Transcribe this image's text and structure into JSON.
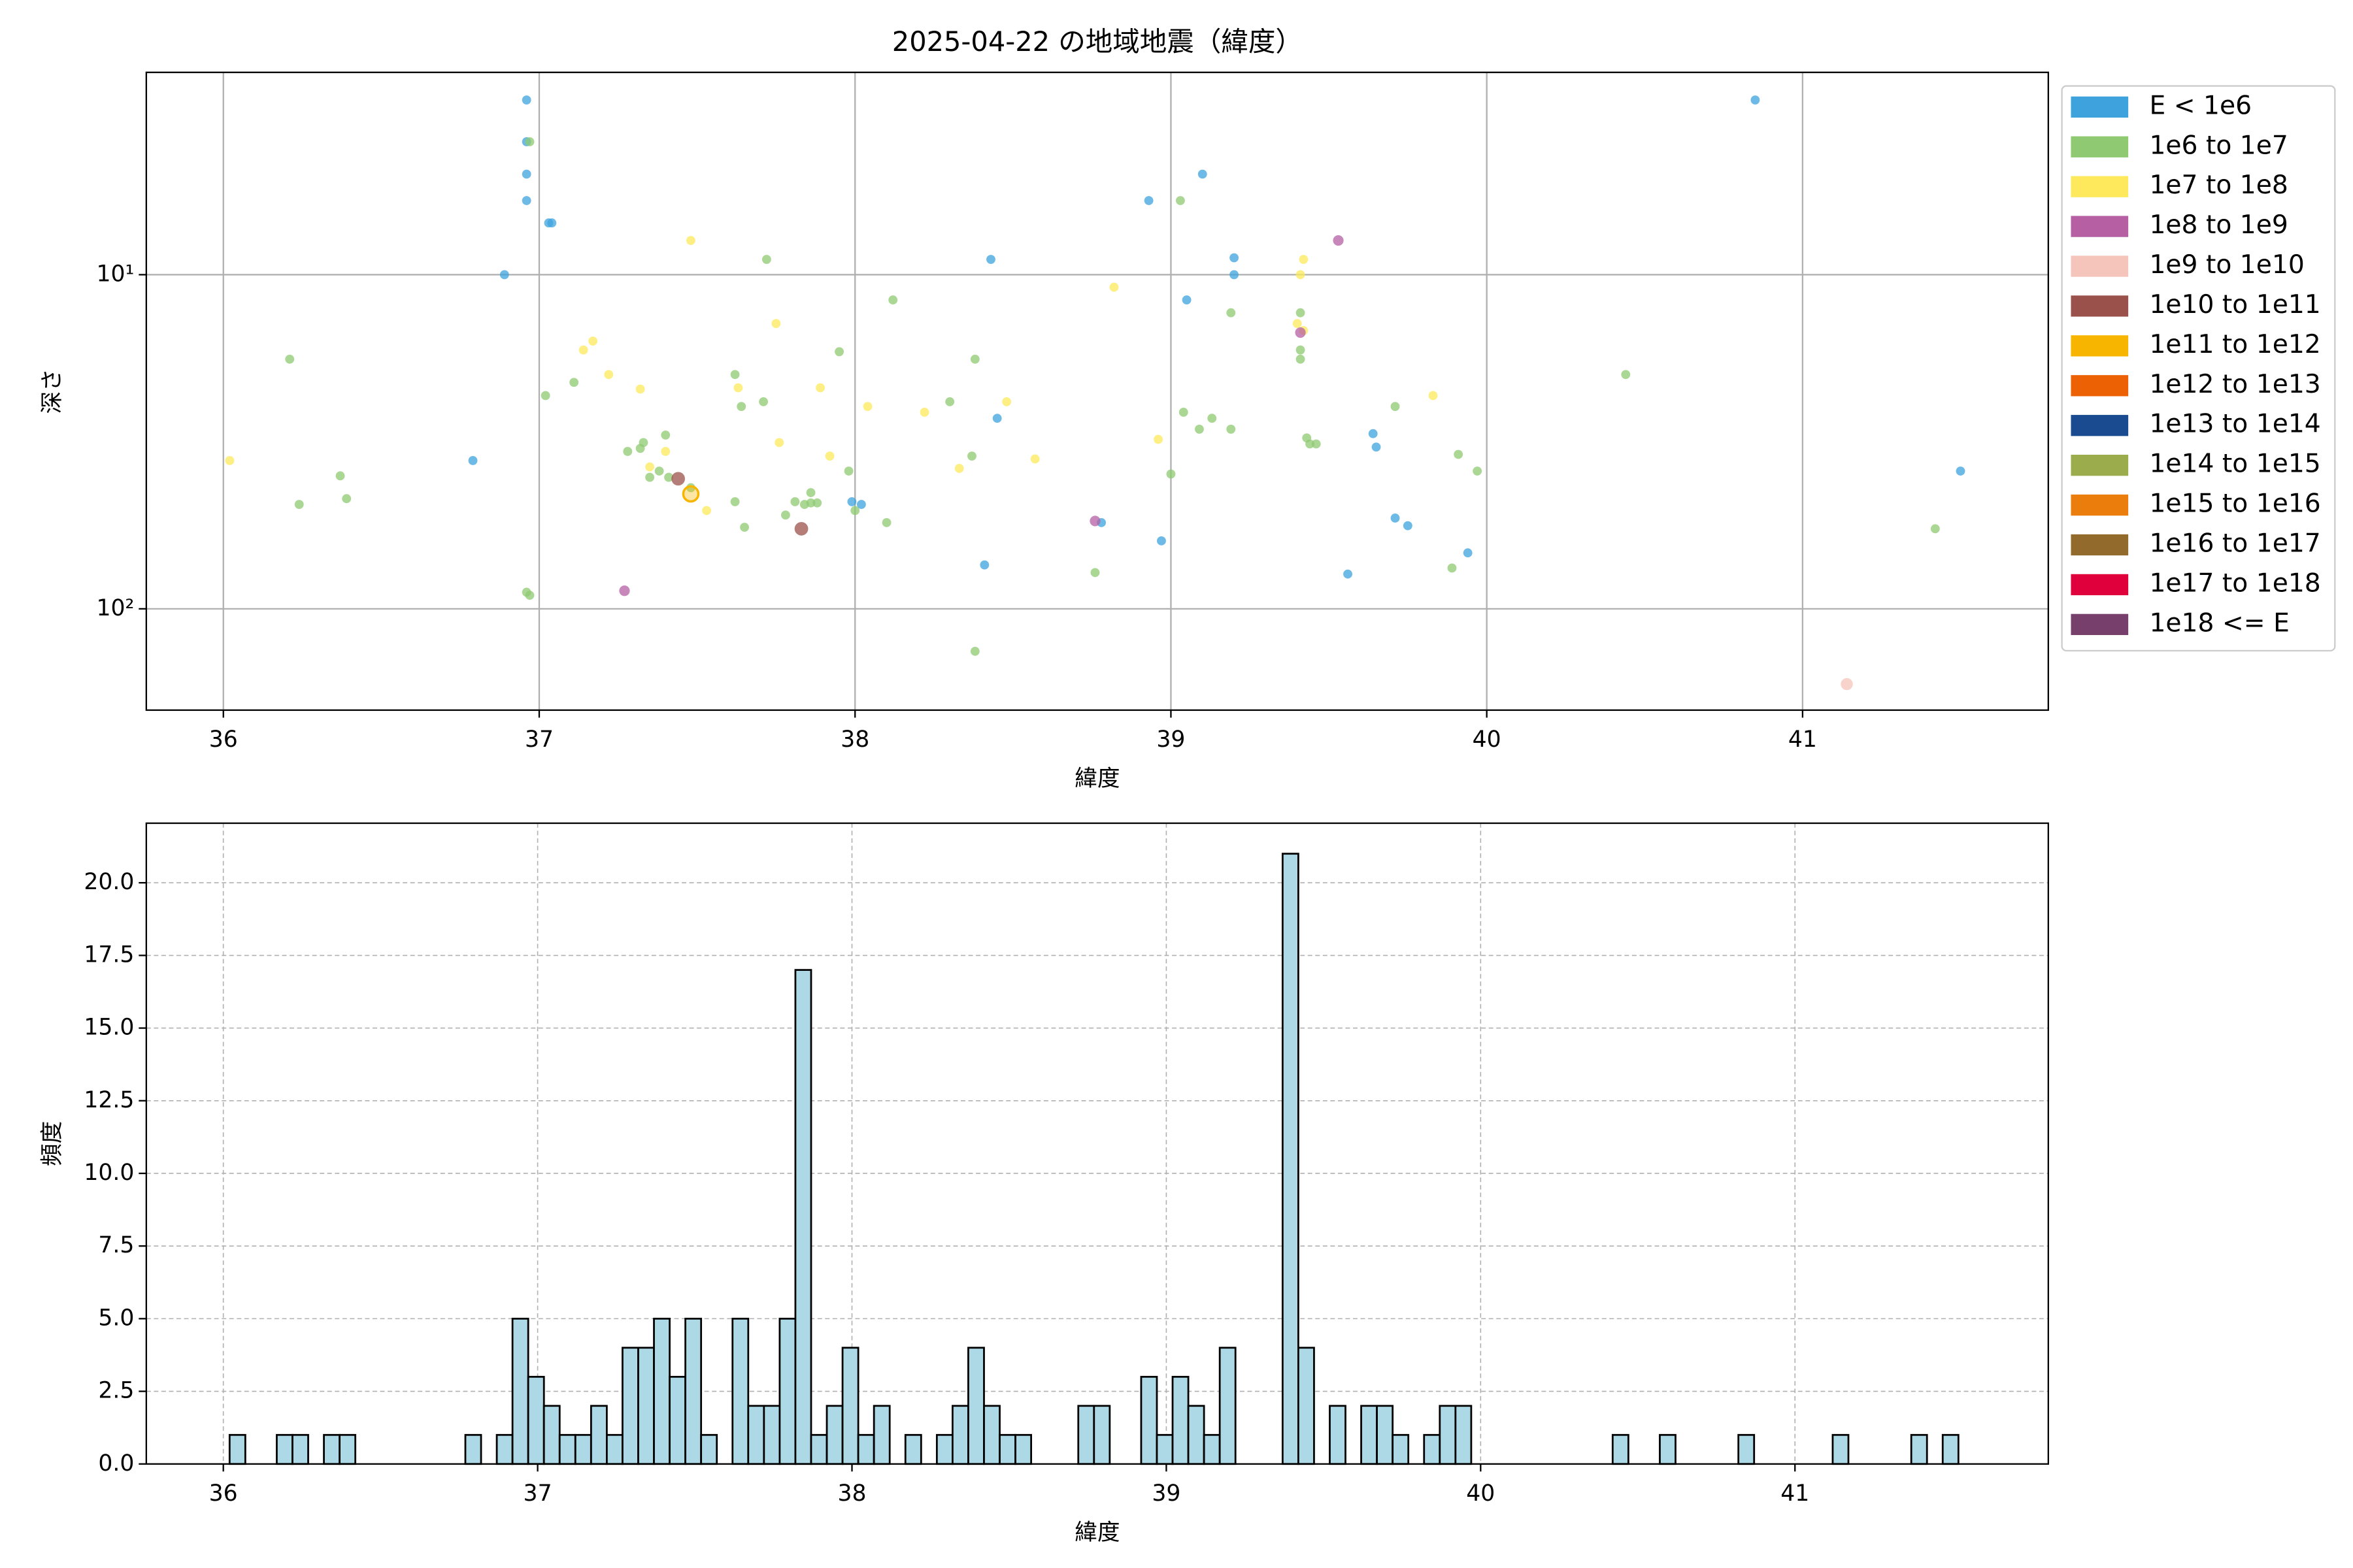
{
  "chart_data": [
    {
      "type": "scatter",
      "title": "2025-04-22 の地域地震（緯度）",
      "xlabel": "緯度",
      "ylabel": "深さ",
      "xlim": [
        35.756,
        41.778
      ],
      "ylim": [
        201,
        2.48
      ],
      "y_scale": "log",
      "xticks": [
        36,
        37,
        38,
        39,
        40,
        41
      ],
      "yticks": [
        {
          "value": 10,
          "label": "10¹"
        },
        {
          "value": 100,
          "label": "10²"
        }
      ],
      "grid": true,
      "legend": "outside right",
      "series": [
        {
          "name": "E < 1e6",
          "color": "#3ea3dd",
          "x": [
            36.96,
            36.96,
            36.96,
            36.96,
            37.03,
            37.04,
            36.89,
            36.79,
            38.43,
            38.45,
            38.93,
            39.1,
            39.05,
            39.2,
            39.2,
            37.99,
            38.02,
            38.78,
            38.41,
            38.97,
            39.56,
            39.64,
            39.65,
            39.71,
            39.75,
            39.94,
            40.85,
            41.5
          ],
          "values": [
            3.0,
            4.0,
            5.0,
            6.0,
            7.0,
            7.0,
            10,
            36,
            9.0,
            26.9,
            6.0,
            5.0,
            11.9,
            8.9,
            10,
            47.8,
            48.7,
            55.2,
            73.9,
            62.6,
            78.7,
            29.9,
            32.8,
            53.5,
            56.4,
            68,
            3.0,
            38.7
          ]
        },
        {
          "name": "1e6 to 1e7",
          "color": "#8fc971",
          "x": [
            36.97,
            36.21,
            36.24,
            36.37,
            36.39,
            37.02,
            37.11,
            36.96,
            36.97,
            37.28,
            37.32,
            37.33,
            37.35,
            37.4,
            37.38,
            37.41,
            37.48,
            37.62,
            37.62,
            37.64,
            37.65,
            37.72,
            37.71,
            37.78,
            37.81,
            37.84,
            37.86,
            37.86,
            37.88,
            37.95,
            37.98,
            38.0,
            38.1,
            38.12,
            38.3,
            38.37,
            38.38,
            38.38,
            38.76,
            39.0,
            39.03,
            39.04,
            39.09,
            39.13,
            39.19,
            39.19,
            39.41,
            39.41,
            39.41,
            39.43,
            39.44,
            39.46,
            39.71,
            39.89,
            39.91,
            39.97,
            40.44,
            41.42
          ],
          "values": [
            4.0,
            17.9,
            48.7,
            40,
            46.8,
            23,
            21,
            89.2,
            91.1,
            33.8,
            33.1,
            31.8,
            40.4,
            30.2,
            38.7,
            40.4,
            43.4,
            19.9,
            47.8,
            24.8,
            57,
            9.0,
            24,
            52.4,
            47.8,
            48.7,
            44.9,
            48.2,
            48.2,
            17.0,
            38.7,
            50.8,
            55.2,
            11.9,
            24,
            34.9,
            17.9,
            134,
            77.9,
            39.5,
            6.0,
            25.8,
            29,
            26.9,
            13.0,
            29,
            13.0,
            16.8,
            17.9,
            30.8,
            32.1,
            32.1,
            24.8,
            75.5,
            34.5,
            38.7,
            19.9,
            57.6
          ]
        },
        {
          "name": "1e7 to 1e8",
          "color": "#fde95b",
          "x": [
            36.02,
            37.14,
            37.17,
            37.22,
            37.32,
            37.4,
            37.35,
            37.48,
            37.53,
            37.63,
            37.75,
            37.76,
            37.89,
            37.92,
            38.04,
            38.22,
            38.33,
            38.48,
            38.57,
            38.82,
            38.96,
            39.41,
            39.42,
            39.4,
            39.42,
            39.83
          ],
          "values": [
            36,
            16.8,
            15.8,
            19.9,
            22,
            33.8,
            37.6,
            7.9,
            50.8,
            21.8,
            14.0,
            31.8,
            21.8,
            34.9,
            24.8,
            25.8,
            38,
            24,
            35.6,
            10.9,
            31.1,
            10,
            9.0,
            14.0,
            14.7,
            23
          ]
        },
        {
          "name": "1e8 to 1e9",
          "color": "#b65fa3",
          "x": [
            39.53,
            37.27,
            38.76,
            39.41
          ],
          "values": [
            7.9,
            88.3,
            54.6,
            14.9
          ]
        },
        {
          "name": "1e9 to 1e10",
          "color": "#f5c4bb",
          "x": [
            41.14
          ],
          "values": [
            168
          ]
        },
        {
          "name": "1e10 to 1e11",
          "color": "#9b514b",
          "x": [
            37.44,
            37.83
          ],
          "values": [
            40.8,
            57.6
          ]
        },
        {
          "name": "1e11 to 1e12",
          "color": "#f8b500",
          "x": [
            37.48
          ],
          "values": [
            45.3
          ]
        },
        {
          "name": "1e12 to 1e13",
          "color": "#ec6104",
          "x": [],
          "values": []
        },
        {
          "name": "1e13 to 1e14",
          "color": "#1a4a8f",
          "x": [],
          "values": []
        },
        {
          "name": "1e14 to 1e15",
          "color": "#9aac4c",
          "x": [],
          "values": []
        },
        {
          "name": "1e15 to 1e16",
          "color": "#ea7d0c",
          "x": [],
          "values": []
        },
        {
          "name": "1e16 to 1e17",
          "color": "#926a2b",
          "x": [],
          "values": []
        },
        {
          "name": "1e17 to 1e18",
          "color": "#e0003c",
          "x": [],
          "values": []
        },
        {
          "name": "1e18 <= E",
          "color": "#773f6c",
          "x": [],
          "values": []
        }
      ]
    },
    {
      "type": "histogram",
      "xlabel": "緯度",
      "ylabel": "頻度",
      "xlim": [
        35.755,
        41.806
      ],
      "ylim": [
        0,
        22.05
      ],
      "xticks": [
        36,
        37,
        38,
        39,
        40,
        41
      ],
      "yticks": [
        {
          "value": 0,
          "label": "0.0"
        },
        {
          "value": 2.5,
          "label": "2.5"
        },
        {
          "value": 5,
          "label": "5.0"
        },
        {
          "value": 7.5,
          "label": "7.5"
        },
        {
          "value": 10,
          "label": "10.0"
        },
        {
          "value": 12.5,
          "label": "12.5"
        },
        {
          "value": 15,
          "label": "15.0"
        },
        {
          "value": 17.5,
          "label": "17.5"
        },
        {
          "value": 20,
          "label": "20.0"
        }
      ],
      "grid": "dashed",
      "color": "#add8e6",
      "edgecolor": "#000000",
      "bins": [
        36.02,
        36.07,
        36.12,
        36.17,
        36.22,
        36.27,
        36.32,
        36.37,
        36.42,
        36.47,
        36.52,
        36.57,
        36.62,
        36.67,
        36.72,
        36.77,
        36.82,
        36.87,
        36.92,
        36.97,
        37.02,
        37.07,
        37.12,
        37.17,
        37.22,
        37.27,
        37.32,
        37.37,
        37.42,
        37.47,
        37.52,
        37.57,
        37.62,
        37.67,
        37.72,
        37.77,
        37.82,
        37.87,
        37.92,
        37.97,
        38.02,
        38.07,
        38.12,
        38.17,
        38.22,
        38.27,
        38.32,
        38.37,
        38.42,
        38.47,
        38.52,
        38.57,
        38.62,
        38.67,
        38.72,
        38.77,
        38.82,
        38.87,
        38.92,
        38.97,
        39.02,
        39.07,
        39.12,
        39.17,
        39.22,
        39.27,
        39.32,
        39.37,
        39.42,
        39.47,
        39.52,
        39.57,
        39.62,
        39.67,
        39.72,
        39.77,
        39.82,
        39.87,
        39.92,
        39.97,
        40.02,
        40.07,
        40.12,
        40.17,
        40.22,
        40.27,
        40.32,
        40.37,
        40.42,
        40.47,
        40.52,
        40.57,
        40.62,
        40.67,
        40.72,
        40.77,
        40.82,
        40.87,
        40.92,
        40.97,
        41.02,
        41.07,
        41.12,
        41.17,
        41.22,
        41.27,
        41.32,
        41.37,
        41.42,
        41.47,
        41.52
      ],
      "values": [
        1,
        0,
        0,
        1,
        1,
        0,
        1,
        1,
        0,
        0,
        0,
        0,
        0,
        0,
        0,
        1,
        0,
        1,
        5,
        3,
        2,
        1,
        1,
        2,
        1,
        4,
        4,
        5,
        3,
        5,
        1,
        0,
        5,
        2,
        2,
        5,
        17,
        1,
        2,
        4,
        1,
        2,
        0,
        1,
        0,
        1,
        2,
        4,
        2,
        1,
        1,
        0,
        0,
        0,
        2,
        2,
        0,
        0,
        3,
        1,
        3,
        2,
        1,
        4,
        0,
        0,
        0,
        21,
        4,
        0,
        2,
        0,
        2,
        2,
        1,
        0,
        1,
        2,
        2,
        0,
        0,
        0,
        0,
        0,
        0,
        0,
        0,
        0,
        1,
        0,
        0,
        1,
        0,
        0,
        0,
        0,
        1,
        0,
        0,
        0,
        0,
        0,
        1,
        0,
        0,
        0,
        0,
        1,
        0,
        1
      ]
    }
  ]
}
